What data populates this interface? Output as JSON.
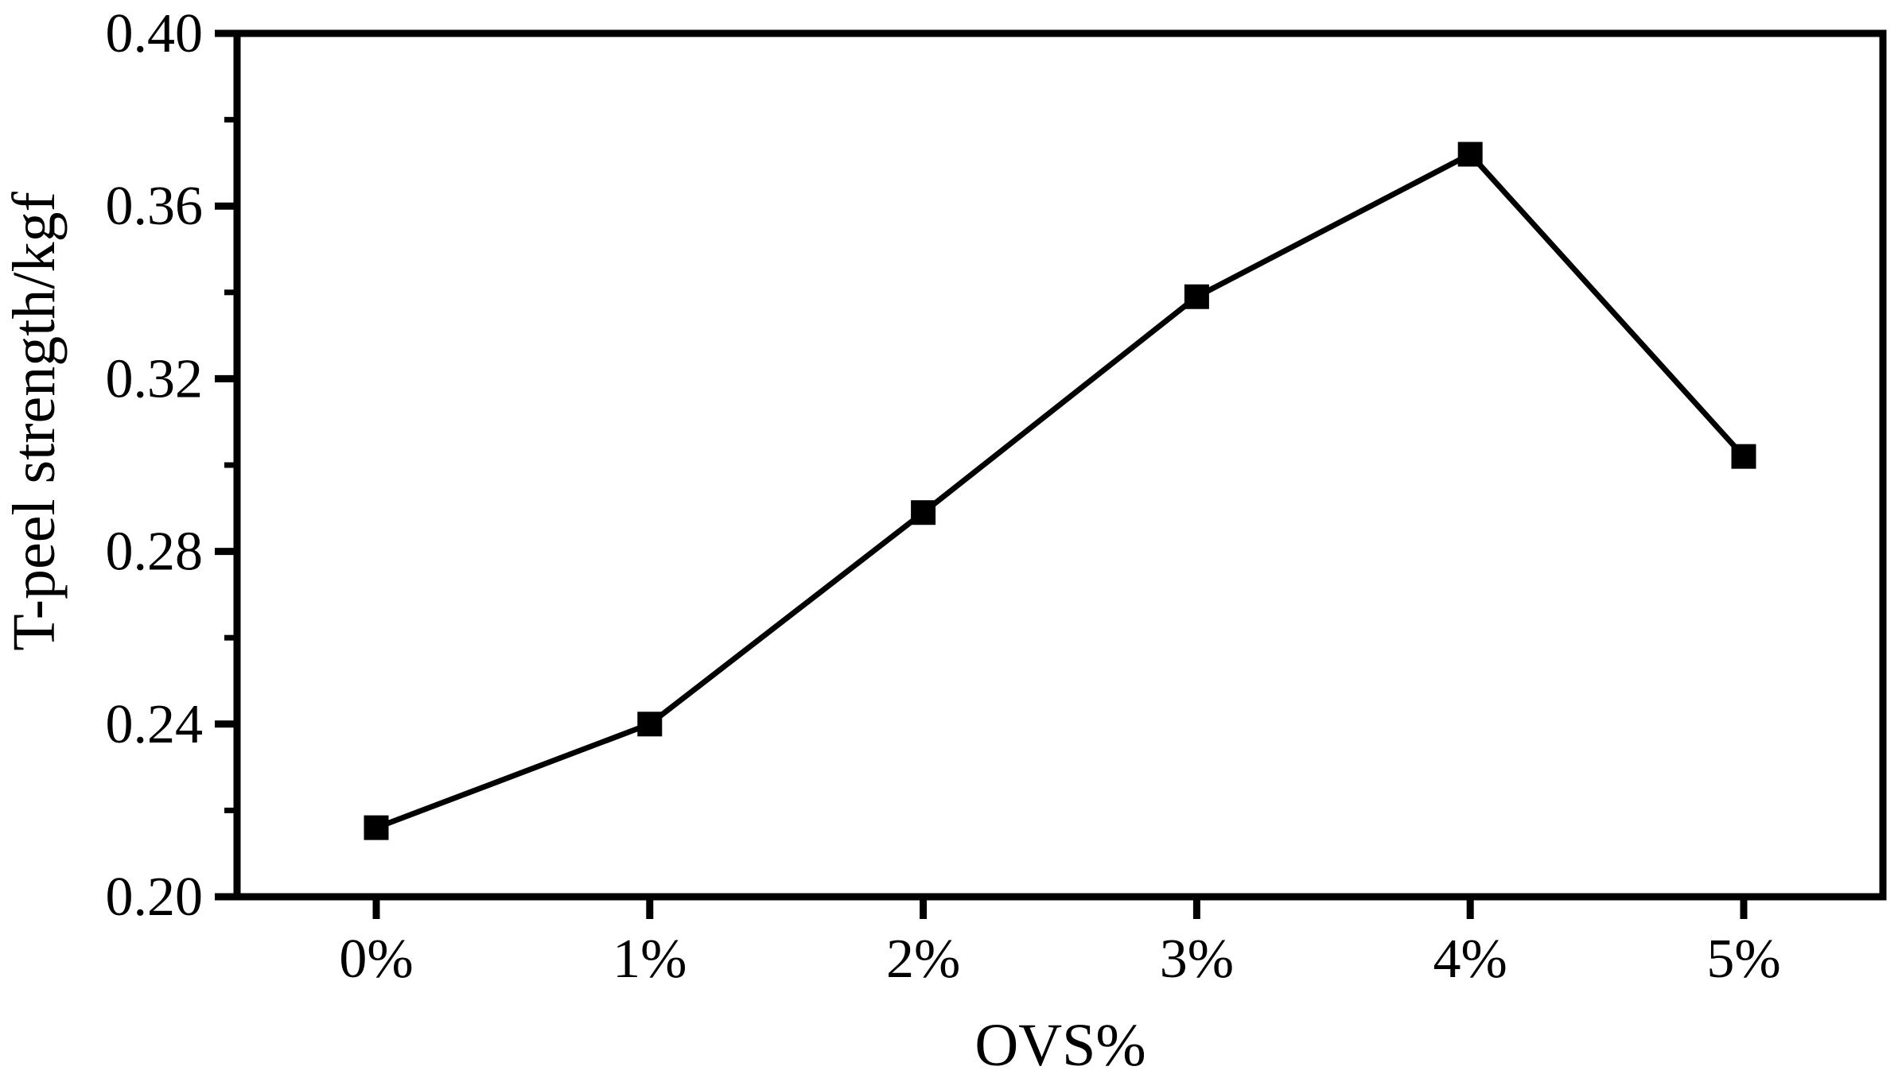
{
  "chart_data": {
    "type": "line",
    "title": "",
    "xlabel": "OVS%",
    "ylabel": "T-peel strength/kgf",
    "categories": [
      "0%",
      "1%",
      "2%",
      "3%",
      "4%",
      "5%"
    ],
    "series": [
      {
        "name": "T-peel strength",
        "values": [
          0.216,
          0.24,
          0.289,
          0.339,
          0.372,
          0.302
        ]
      }
    ],
    "ylim": [
      0.2,
      0.4
    ],
    "yticks_major": [
      0.2,
      0.24,
      0.28,
      0.32,
      0.36,
      0.4
    ],
    "ytick_labels": [
      "0.20",
      "0.24",
      "0.28",
      "0.32",
      "0.36",
      "0.40"
    ],
    "yticks_minor": [
      0.22,
      0.26,
      0.3,
      0.34,
      0.38
    ],
    "grid": false,
    "legend_position": "none",
    "marker": "square",
    "line_color": "#000000",
    "marker_color": "#000000",
    "axis_color": "#000000",
    "background_color": "#ffffff"
  }
}
